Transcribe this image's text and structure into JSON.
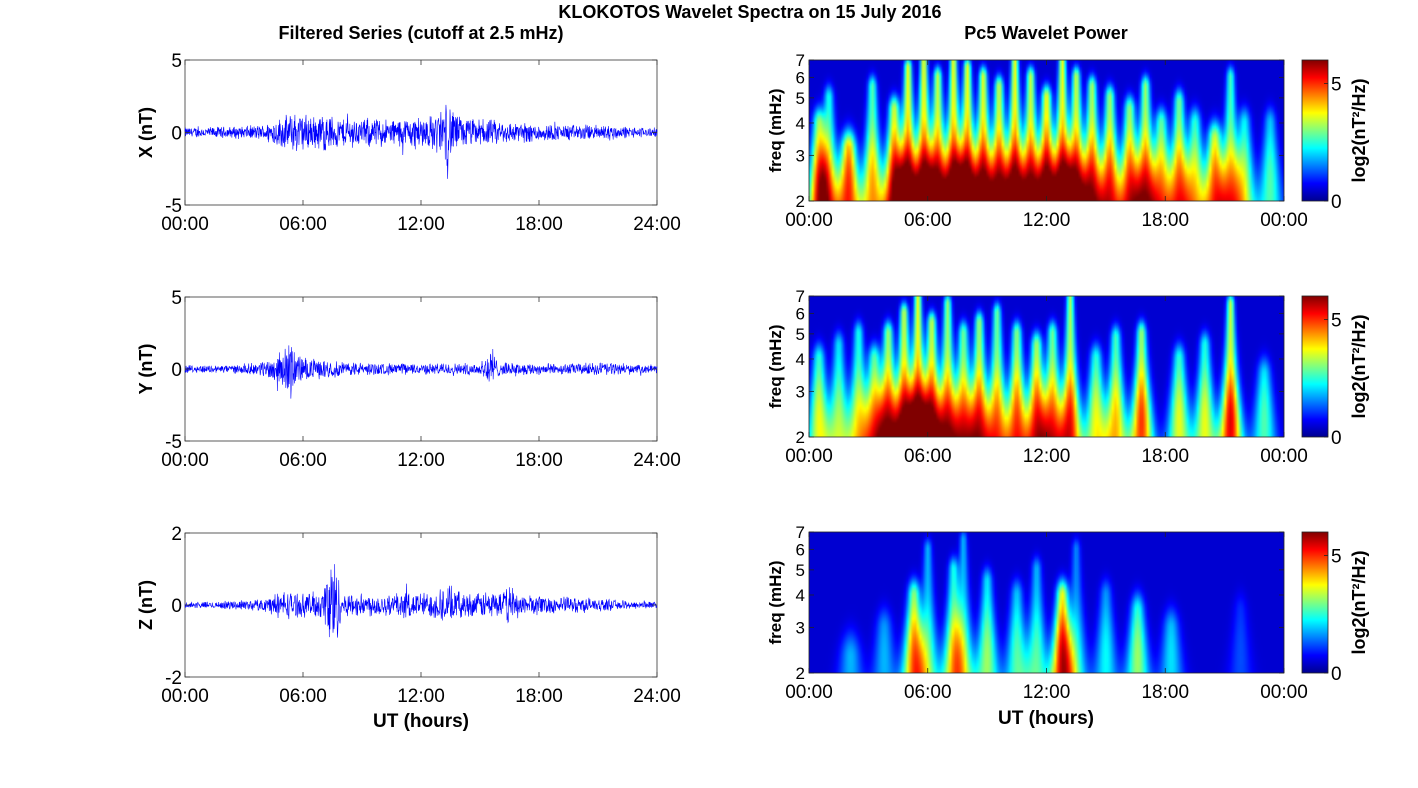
{
  "figure": {
    "title": "KLOKOTOS Wavelet Spectra on 15 July 2016",
    "left_column_title": "Filtered Series (cutoff at 2.5 mHz)",
    "right_column_title": "Pc5 Wavelet Power",
    "xlabel": "UT (hours)"
  },
  "chart_data": [
    {
      "type": "line",
      "panel": "X",
      "ylabel": "X (nT)",
      "x_ticks": [
        "00:00",
        "06:00",
        "12:00",
        "18:00",
        "24:00"
      ],
      "xlim": [
        0,
        24
      ],
      "ylim": [
        -5,
        5
      ],
      "y_ticks": [
        "-5",
        "0",
        "5"
      ],
      "line_color": "#0000ff",
      "envelope": {
        "x": [
          0,
          1,
          2,
          3,
          4,
          4.5,
          5,
          5.5,
          6,
          6.5,
          7,
          7.5,
          8,
          8.5,
          9,
          9.5,
          10,
          10.5,
          11,
          11.5,
          12,
          12.5,
          13,
          13.3,
          13.6,
          14,
          14.5,
          15,
          15.5,
          16,
          17,
          18,
          19,
          20,
          21,
          21.5,
          22,
          23,
          24
        ],
        "amplitude": [
          0.4,
          0.4,
          0.45,
          0.5,
          0.6,
          1.0,
          1.2,
          1.6,
          1.5,
          1.3,
          1.5,
          1.3,
          1.1,
          1.2,
          1.0,
          1.2,
          1.1,
          1.0,
          1.1,
          1.2,
          1.3,
          1.3,
          1.8,
          2.6,
          1.9,
          1.2,
          1.1,
          1.0,
          1.0,
          0.9,
          0.8,
          0.7,
          0.6,
          0.6,
          0.6,
          0.7,
          0.5,
          0.4,
          0.35
        ]
      }
    },
    {
      "type": "line",
      "panel": "Y",
      "ylabel": "Y (nT)",
      "x_ticks": [
        "00:00",
        "06:00",
        "12:00",
        "18:00",
        "24:00"
      ],
      "xlim": [
        0,
        24
      ],
      "ylim": [
        -5,
        5
      ],
      "y_ticks": [
        "-5",
        "0",
        "5"
      ],
      "line_color": "#0000ff",
      "envelope": {
        "x": [
          0,
          1,
          2,
          3,
          4,
          4.5,
          5,
          5.3,
          5.6,
          6,
          6.5,
          7,
          8,
          9,
          10,
          11,
          12,
          13,
          14,
          15,
          15.5,
          16,
          17,
          18,
          19,
          20,
          21,
          21.5,
          22,
          23,
          24
        ],
        "amplitude": [
          0.3,
          0.3,
          0.3,
          0.35,
          0.6,
          1.0,
          1.4,
          2.3,
          1.5,
          0.9,
          0.8,
          0.7,
          0.6,
          0.5,
          0.45,
          0.45,
          0.4,
          0.45,
          0.45,
          0.5,
          1.6,
          0.5,
          0.45,
          0.45,
          0.4,
          0.45,
          0.5,
          0.6,
          0.4,
          0.3,
          0.3
        ]
      }
    },
    {
      "type": "line",
      "panel": "Z",
      "ylabel": "Z (nT)",
      "x_ticks": [
        "00:00",
        "06:00",
        "12:00",
        "18:00",
        "24:00"
      ],
      "xlim": [
        0,
        24
      ],
      "ylim": [
        -2,
        2
      ],
      "y_ticks": [
        "-2",
        "0",
        "2"
      ],
      "line_color": "#0000ff",
      "envelope": {
        "x": [
          0,
          1,
          2,
          3,
          4,
          4.5,
          5,
          5.5,
          6,
          6.5,
          7,
          7.5,
          8,
          9,
          10,
          11,
          12,
          12.5,
          13,
          13.3,
          13.6,
          14,
          15,
          15.5,
          16,
          16.5,
          17,
          18,
          19,
          20,
          21,
          22,
          23,
          24
        ],
        "amplitude": [
          0.1,
          0.1,
          0.12,
          0.15,
          0.2,
          0.35,
          0.45,
          0.4,
          0.35,
          0.4,
          0.45,
          1.8,
          0.35,
          0.35,
          0.35,
          0.4,
          0.4,
          0.4,
          0.5,
          0.7,
          0.5,
          0.4,
          0.35,
          0.5,
          0.35,
          0.6,
          0.35,
          0.3,
          0.25,
          0.25,
          0.2,
          0.15,
          0.12,
          0.1
        ]
      }
    },
    {
      "type": "heatmap",
      "panel": "X",
      "ylabel": "freq (mHz)",
      "x_ticks": [
        "00:00",
        "06:00",
        "12:00",
        "18:00",
        "00:00"
      ],
      "xlim": [
        0,
        24
      ],
      "ylim": [
        2,
        7
      ],
      "y_scale": "log",
      "y_ticks": [
        "2",
        "3",
        "4",
        "5",
        "6",
        "7"
      ],
      "colorbar": {
        "label": "log2(nT²/Hz)",
        "ticks": [
          "0",
          "5"
        ],
        "range": [
          0,
          6
        ],
        "colormap": "jet"
      },
      "bursts": [
        {
          "t": 0.5,
          "power": 4.5,
          "top": 4.0
        },
        {
          "t": 1.0,
          "power": 3.5,
          "top": 5.0
        },
        {
          "t": 2.0,
          "power": 5.0,
          "top": 3.2
        },
        {
          "t": 3.2,
          "power": 4.2,
          "top": 5.5
        },
        {
          "t": 4.3,
          "power": 5.5,
          "top": 4.5
        },
        {
          "t": 5.0,
          "power": 6.0,
          "top": 6.5
        },
        {
          "t": 5.8,
          "power": 6.0,
          "top": 7.0
        },
        {
          "t": 6.5,
          "power": 5.5,
          "top": 6.0
        },
        {
          "t": 7.3,
          "power": 6.0,
          "top": 7.0
        },
        {
          "t": 8.0,
          "power": 6.0,
          "top": 6.5
        },
        {
          "t": 8.8,
          "power": 5.8,
          "top": 6.0
        },
        {
          "t": 9.6,
          "power": 5.5,
          "top": 5.5
        },
        {
          "t": 10.4,
          "power": 6.0,
          "top": 7.0
        },
        {
          "t": 11.2,
          "power": 5.5,
          "top": 6.0
        },
        {
          "t": 12.0,
          "power": 6.0,
          "top": 5.0
        },
        {
          "t": 12.8,
          "power": 6.0,
          "top": 7.0
        },
        {
          "t": 13.5,
          "power": 5.5,
          "top": 6.0
        },
        {
          "t": 14.3,
          "power": 5.2,
          "top": 5.5
        },
        {
          "t": 15.2,
          "power": 5.0,
          "top": 5.0
        },
        {
          "t": 16.2,
          "power": 4.8,
          "top": 4.5
        },
        {
          "t": 17.0,
          "power": 5.0,
          "top": 5.5
        },
        {
          "t": 17.8,
          "power": 4.0,
          "top": 4.0
        },
        {
          "t": 18.7,
          "power": 4.5,
          "top": 4.8
        },
        {
          "t": 19.5,
          "power": 3.5,
          "top": 4.0
        },
        {
          "t": 20.5,
          "power": 4.5,
          "top": 3.5
        },
        {
          "t": 21.3,
          "power": 4.0,
          "top": 6.0
        },
        {
          "t": 22.0,
          "power": 3.0,
          "top": 4.0
        },
        {
          "t": 23.3,
          "power": 2.5,
          "top": 4.0
        }
      ]
    },
    {
      "type": "heatmap",
      "panel": "Y",
      "ylabel": "freq (mHz)",
      "x_ticks": [
        "00:00",
        "06:00",
        "12:00",
        "18:00",
        "00:00"
      ],
      "xlim": [
        0,
        24
      ],
      "ylim": [
        2,
        7
      ],
      "y_scale": "log",
      "y_ticks": [
        "2",
        "3",
        "4",
        "5",
        "6",
        "7"
      ],
      "colorbar": {
        "label": "log2(nT²/Hz)",
        "ticks": [
          "0",
          "5"
        ],
        "range": [
          0,
          6
        ],
        "colormap": "jet"
      },
      "bursts": [
        {
          "t": 0.5,
          "power": 3.5,
          "top": 4.0
        },
        {
          "t": 1.5,
          "power": 3.0,
          "top": 4.5
        },
        {
          "t": 2.5,
          "power": 3.5,
          "top": 5.0
        },
        {
          "t": 3.3,
          "power": 4.0,
          "top": 4.0
        },
        {
          "t": 4.0,
          "power": 5.0,
          "top": 5.0
        },
        {
          "t": 4.8,
          "power": 5.5,
          "top": 6.0
        },
        {
          "t": 5.5,
          "power": 6.0,
          "top": 7.0
        },
        {
          "t": 6.2,
          "power": 5.5,
          "top": 5.5
        },
        {
          "t": 7.0,
          "power": 5.0,
          "top": 6.5
        },
        {
          "t": 7.8,
          "power": 4.5,
          "top": 5.0
        },
        {
          "t": 8.6,
          "power": 5.0,
          "top": 5.5
        },
        {
          "t": 9.5,
          "power": 4.5,
          "top": 6.0
        },
        {
          "t": 10.5,
          "power": 4.8,
          "top": 5.0
        },
        {
          "t": 11.5,
          "power": 5.0,
          "top": 4.5
        },
        {
          "t": 12.3,
          "power": 4.5,
          "top": 5.0
        },
        {
          "t": 13.2,
          "power": 5.2,
          "top": 7.0
        },
        {
          "t": 14.5,
          "power": 3.5,
          "top": 4.0
        },
        {
          "t": 15.5,
          "power": 4.0,
          "top": 4.8
        },
        {
          "t": 16.8,
          "power": 5.0,
          "top": 5.0
        },
        {
          "t": 18.7,
          "power": 3.5,
          "top": 4.0
        },
        {
          "t": 20.0,
          "power": 3.5,
          "top": 4.5
        },
        {
          "t": 21.3,
          "power": 5.5,
          "top": 6.5
        },
        {
          "t": 23.0,
          "power": 2.5,
          "top": 3.5
        }
      ]
    },
    {
      "type": "heatmap",
      "panel": "Z",
      "ylabel": "freq (mHz)",
      "x_ticks": [
        "00:00",
        "06:00",
        "12:00",
        "18:00",
        "00:00"
      ],
      "xlim": [
        0,
        24
      ],
      "ylim": [
        2,
        7
      ],
      "y_scale": "log",
      "y_ticks": [
        "2",
        "3",
        "4",
        "5",
        "6",
        "7"
      ],
      "colorbar": {
        "label": "log2(nT²/Hz)",
        "ticks": [
          "0",
          "5"
        ],
        "range": [
          0,
          6
        ],
        "colormap": "jet"
      },
      "bursts": [
        {
          "t": 2.1,
          "power": 1.5,
          "top": 2.3
        },
        {
          "t": 3.8,
          "power": 1.5,
          "top": 3.0
        },
        {
          "t": 5.3,
          "power": 4.5,
          "top": 4.0
        },
        {
          "t": 6.0,
          "power": 2.5,
          "top": 6.0
        },
        {
          "t": 7.3,
          "power": 3.5,
          "top": 5.0
        },
        {
          "t": 7.8,
          "power": 2.5,
          "top": 6.5
        },
        {
          "t": 9.0,
          "power": 3.0,
          "top": 4.5
        },
        {
          "t": 10.5,
          "power": 2.5,
          "top": 4.0
        },
        {
          "t": 11.5,
          "power": 2.5,
          "top": 5.0
        },
        {
          "t": 12.8,
          "power": 5.5,
          "top": 4.0
        },
        {
          "t": 13.5,
          "power": 2.0,
          "top": 6.0
        },
        {
          "t": 15.0,
          "power": 2.0,
          "top": 4.0
        },
        {
          "t": 16.6,
          "power": 3.0,
          "top": 3.5
        },
        {
          "t": 18.3,
          "power": 1.8,
          "top": 3.0
        },
        {
          "t": 21.8,
          "power": 0.8,
          "top": 3.5
        }
      ]
    }
  ]
}
